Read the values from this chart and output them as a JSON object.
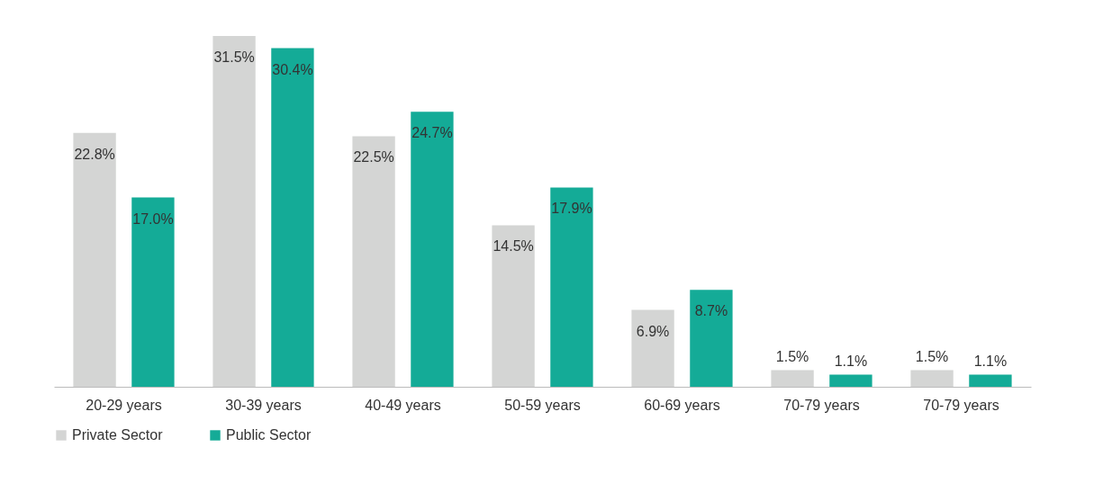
{
  "chart_data": {
    "type": "bar",
    "categories": [
      "20-29 years",
      "30-39 years",
      "40-49 years",
      "50-59 years",
      "60-69 years",
      "70-79 years",
      "70-79 years"
    ],
    "series": [
      {
        "name": "Private Sector",
        "color": "#d4d5d4",
        "values": [
          22.8,
          31.5,
          22.5,
          14.5,
          6.9,
          1.5,
          1.5
        ],
        "value_labels": [
          "22.8%",
          "31.5%",
          "22.5%",
          "14.5%",
          "6.9%",
          "1.5%",
          "1.5%"
        ]
      },
      {
        "name": "Public Sector",
        "color": "#14ab97",
        "values": [
          17.0,
          30.4,
          24.7,
          17.9,
          8.7,
          1.1,
          1.1
        ],
        "value_labels": [
          "17.0%",
          "30.4%",
          "24.7%",
          "17.9%",
          "8.7%",
          "1.1%",
          "1.1%"
        ]
      }
    ],
    "legend": "bottom",
    "grid": false
  }
}
